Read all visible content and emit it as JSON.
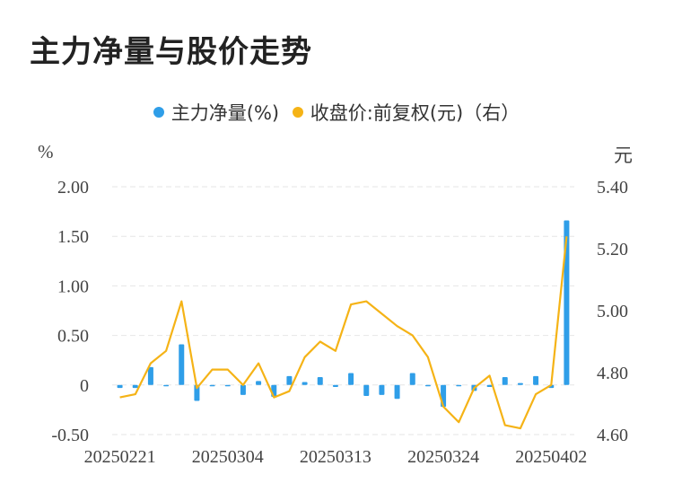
{
  "title": "主力净量与股价走势",
  "legend": [
    {
      "label": "主力净量(%)",
      "color": "#2f9ee8"
    },
    {
      "label": "收盘价:前复权(元)（右）",
      "color": "#f5b316"
    }
  ],
  "left_unit": "%",
  "right_unit": "元",
  "chart_data": {
    "type": "bar+line",
    "x_tick_labels": [
      "20250221",
      "20250304",
      "20250313",
      "20250324",
      "20250402"
    ],
    "x_tick_indices": [
      0,
      7,
      14,
      21,
      28
    ],
    "left_axis": {
      "ticks": [
        "2.00",
        "1.50",
        "1.00",
        "0.50",
        "0",
        "-0.50"
      ],
      "ylim": [
        -0.5,
        2.0
      ]
    },
    "right_axis": {
      "ticks": [
        "5.40",
        "5.20",
        "5.00",
        "4.80",
        "4.60"
      ],
      "ylim": [
        4.6,
        5.4
      ]
    },
    "grid": true,
    "series": [
      {
        "name": "主力净量(%)",
        "type": "bar",
        "axis": "left",
        "color": "#2f9ee8",
        "values": [
          -0.03,
          -0.03,
          0.18,
          -0.01,
          0.41,
          -0.16,
          -0.01,
          -0.01,
          -0.1,
          0.04,
          -0.12,
          0.09,
          0.03,
          0.08,
          -0.02,
          0.12,
          -0.11,
          -0.1,
          -0.14,
          0.12,
          -0.01,
          -0.22,
          -0.01,
          -0.06,
          -0.02,
          0.08,
          0.02,
          0.09,
          -0.03,
          1.66
        ]
      },
      {
        "name": "收盘价:前复权(元)（右）",
        "type": "line",
        "axis": "right",
        "color": "#f5b316",
        "values": [
          4.72,
          4.73,
          4.83,
          4.87,
          5.03,
          4.75,
          4.81,
          4.81,
          4.76,
          4.83,
          4.72,
          4.74,
          4.85,
          4.9,
          4.87,
          5.02,
          5.03,
          4.99,
          4.95,
          4.92,
          4.85,
          4.69,
          4.64,
          4.75,
          4.79,
          4.63,
          4.62,
          4.73,
          4.76,
          5.24
        ]
      }
    ]
  }
}
